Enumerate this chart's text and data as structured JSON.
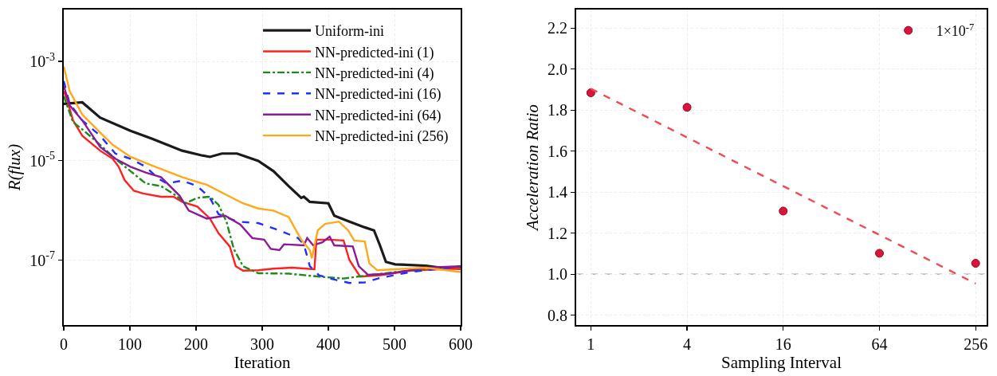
{
  "chart_data": [
    {
      "type": "line",
      "xlabel": "Iteration",
      "ylabel": "R(flux)",
      "log": "y",
      "grid": true,
      "legend": "top right",
      "marker": "none",
      "xlim": [
        0,
        600
      ],
      "xticks": [
        0,
        100,
        200,
        300,
        400,
        500,
        600
      ],
      "ylim": [
        5e-09,
        0.011
      ],
      "yticks": [
        {
          "value": 0.001,
          "label": "10$^{-3}$"
        },
        {
          "value": 1e-05,
          "label": "10$^{-5}$"
        },
        {
          "value": 1e-07,
          "label": "10$^{-7}$"
        }
      ],
      "series": [
        {
          "name": "Uniform-ini",
          "color": "#1a1a1a",
          "line_style": "solid",
          "x": [
            0,
            28,
            55,
            101,
            133,
            179,
            207,
            221,
            239,
            262,
            294,
            317,
            340,
            359,
            363,
            372,
            400,
            409,
            432,
            455,
            469,
            478,
            487,
            501,
            547,
            570,
            600
          ],
          "values": [
            0.00014,
            0.00015,
            7.4e-05,
            4e-05,
            2.8e-05,
            1.6e-05,
            1.3e-05,
            1.2e-05,
            1.4e-05,
            1.4e-05,
            1e-05,
            6.2e-06,
            3.1e-06,
            1.8e-06,
            1.9e-06,
            1.5e-06,
            1.4e-06,
            7.9e-07,
            6e-07,
            4.6e-07,
            4e-07,
            2e-07,
            9.3e-08,
            8.3e-08,
            7.8e-08,
            7.1e-08,
            6.8e-08
          ]
        },
        {
          "name": "NN-predicted-ini (1)",
          "color": "#ff2020",
          "line_style": "solid",
          "x": [
            0,
            5,
            14,
            28,
            55,
            74,
            83,
            92,
            106,
            120,
            147,
            166,
            179,
            202,
            221,
            234,
            251,
            260,
            271,
            294,
            317,
            345,
            379,
            382,
            400,
            423,
            432,
            448,
            478,
            524,
            600
          ],
          "values": [
            0.00025,
            0.00017,
            6.5e-05,
            3.2e-05,
            1.6e-05,
            1.1e-05,
            7.6e-06,
            4.1e-06,
            2.5e-06,
            2.2e-06,
            1.9e-06,
            1.9e-06,
            1.5e-06,
            1.2e-06,
            6.9e-07,
            3.5e-07,
            1.9e-07,
            7.6e-08,
            6.2e-08,
            6.3e-08,
            6.8e-08,
            7.1e-08,
            6.6e-08,
            2.6e-07,
            2.6e-07,
            2.5e-07,
            1e-07,
            4.7e-08,
            5e-08,
            6.2e-08,
            6.9e-08
          ]
        },
        {
          "name": "NN-predicted-ini (4)",
          "color": "#1a8c1a",
          "line_style": "dashdot",
          "x": [
            0,
            5,
            14,
            28,
            55,
            78,
            101,
            124,
            147,
            170,
            184,
            202,
            221,
            234,
            246,
            257,
            271,
            294,
            340,
            386,
            423,
            455,
            501,
            547,
            600
          ],
          "values": [
            0.0002,
            0.00013,
            6e-05,
            4.3e-05,
            2.1e-05,
            1.1e-05,
            6.2e-06,
            3.5e-06,
            3.1e-06,
            2e-06,
            1.4e-06,
            1.8e-06,
            1.9e-06,
            1.3e-06,
            6e-07,
            1.7e-07,
            7.6e-08,
            5.5e-08,
            5.4e-08,
            4.7e-08,
            4.3e-08,
            4.9e-08,
            5.8e-08,
            6.6e-08,
            7.6e-08
          ]
        },
        {
          "name": "NN-predicted-ini (16)",
          "color": "#1f2fff",
          "line_style": "dashed",
          "x": [
            0,
            9,
            28,
            55,
            78,
            101,
            124,
            143,
            156,
            179,
            202,
            221,
            234,
            262,
            294,
            326,
            354,
            363,
            372,
            386,
            409,
            432,
            455,
            478,
            524,
            600
          ],
          "values": [
            0.0004,
            0.00014,
            6.5e-05,
            3.2e-05,
            1.4e-05,
            1.1e-05,
            7.6e-06,
            4.4e-06,
            3.5e-06,
            4e-06,
            3.1e-06,
            1.8e-06,
            8.5e-07,
            6e-07,
            5.6e-07,
            4e-07,
            2.8e-07,
            2.1e-07,
            7.6e-08,
            5e-08,
            4.1e-08,
            3.5e-08,
            3.6e-08,
            4.4e-08,
            5.8e-08,
            7.6e-08
          ]
        },
        {
          "name": "NN-predicted-ini (64)",
          "color": "#8b1a9b",
          "line_style": "solid",
          "x": [
            0,
            9,
            28,
            55,
            78,
            101,
            124,
            147,
            175,
            189,
            216,
            244,
            267,
            285,
            303,
            313,
            326,
            333,
            363,
            368,
            377,
            391,
            402,
            409,
            437,
            446,
            460,
            492,
            547,
            600
          ],
          "values": [
            0.00032,
            0.00013,
            6.5e-05,
            1.9e-05,
            1.1e-05,
            7.6e-06,
            5.8e-06,
            4.7e-06,
            2e-06,
            1e-06,
            6.9e-07,
            7.9e-07,
            5.2e-07,
            2.8e-07,
            2.6e-07,
            1.7e-07,
            1.6e-07,
            2.1e-07,
            2e-07,
            2.8e-07,
            2e-07,
            2.3e-07,
            3e-07,
            2e-07,
            1.9e-07,
            7.6e-08,
            5.1e-08,
            5.4e-08,
            7.1e-08,
            7.6e-08
          ]
        },
        {
          "name": "NN-predicted-ini (256)",
          "color": "#ffa81a",
          "line_style": "solid",
          "x": [
            0,
            9,
            28,
            55,
            74,
            101,
            133,
            179,
            216,
            248,
            271,
            294,
            317,
            340,
            359,
            372,
            375,
            384,
            395,
            416,
            430,
            439,
            455,
            462,
            474,
            501,
            547,
            600
          ],
          "values": [
            0.00079,
            0.00025,
            8.5e-05,
            3.7e-05,
            2.1e-05,
            1.2e-05,
            8.1e-06,
            4.7e-06,
            3.3e-06,
            2e-06,
            1.4e-06,
            1.1e-06,
            1e-06,
            7.4e-07,
            2.6e-07,
            1.6e-07,
            1.1e-07,
            4e-07,
            5.4e-07,
            6e-07,
            4e-07,
            2.5e-07,
            2.4e-07,
            8.7e-08,
            6.3e-08,
            6.6e-08,
            7.1e-08,
            5.8e-08
          ]
        }
      ]
    },
    {
      "type": "scatter",
      "xlabel": "Sampling Interval",
      "ylabel": "Acceleration Ratio",
      "log": "x",
      "grid": true,
      "legend": "top right",
      "marker": "circle",
      "xlim": [
        0.81,
        300
      ],
      "xticks": [
        1,
        4,
        16,
        64,
        256
      ],
      "ylim": [
        0.752,
        2.291
      ],
      "yticks": [
        0.8,
        {
          "value": 1.0,
          "label": "1.0"
        },
        1.2,
        1.4,
        1.6,
        1.8,
        {
          "value": 2.0,
          "label": "2.0"
        },
        2.2
      ],
      "ref_lines": [
        {
          "axis": "y",
          "value": 1.0,
          "color": "#a0a0a0",
          "line_style": "dashed"
        }
      ],
      "series": [
        {
          "name": "1×10$^{-7}$",
          "color": "#dc143c",
          "x": [
            1,
            4,
            16,
            64,
            256
          ],
          "values": [
            1.885,
            1.814,
            1.308,
            1.102,
            1.053
          ]
        },
        {
          "type": "line",
          "color": "#ee4b55",
          "line_style": "dashed",
          "marker": "none",
          "x": [
            1,
            256
          ],
          "values": [
            1.905,
            0.954
          ]
        }
      ]
    }
  ]
}
